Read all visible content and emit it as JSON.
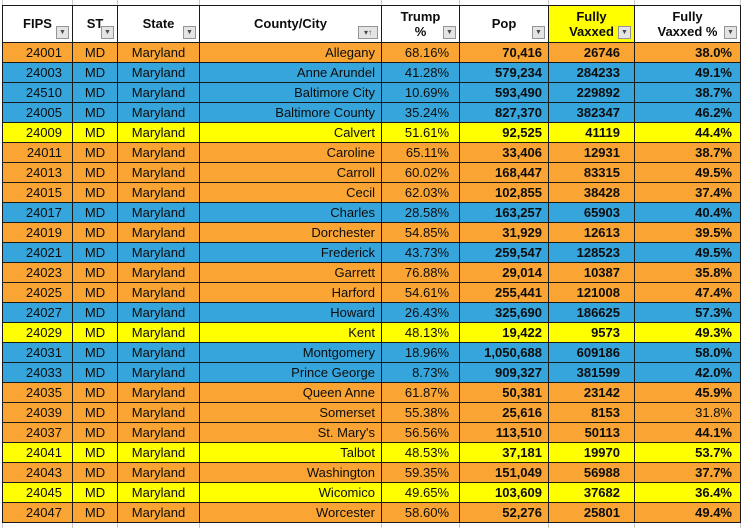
{
  "icons": {
    "dropdown": "▼",
    "sort_ascending": "▾↑"
  },
  "colors": {
    "row_orange": "#F9A433",
    "row_blue": "#36A5DC",
    "row_yellow": "#FFFF00",
    "header_highlight": "#FFFF00",
    "gridline": "#1a1a1a",
    "text": "#0d0d0d"
  },
  "table": {
    "columns": [
      {
        "key": "fips",
        "label": "FIPS",
        "filter": true
      },
      {
        "key": "st",
        "label": "ST",
        "filter": true
      },
      {
        "key": "state",
        "label": "State",
        "filter": true
      },
      {
        "key": "county",
        "label": "County/City",
        "filter": true,
        "sorted": "ascending"
      },
      {
        "key": "trump_pct",
        "label": "Trump\n%",
        "filter": true
      },
      {
        "key": "pop",
        "label": "Pop",
        "filter": true
      },
      {
        "key": "fully_vaxxed",
        "label": "Fully\nVaxxed",
        "filter": true,
        "highlighted": true
      },
      {
        "key": "fully_vaxxed_pct",
        "label": "Fully\nVaxxed %",
        "filter": true
      }
    ],
    "rows": [
      {
        "fips": "24001",
        "st": "MD",
        "state": "Maryland",
        "county": "Allegany",
        "trump_pct": "68.16%",
        "pop": "70,416",
        "fully_vaxxed": "26746",
        "fully_vaxxed_pct": "38.0%",
        "color": "orange"
      },
      {
        "fips": "24003",
        "st": "MD",
        "state": "Maryland",
        "county": "Anne Arundel",
        "trump_pct": "41.28%",
        "pop": "579,234",
        "fully_vaxxed": "284233",
        "fully_vaxxed_pct": "49.1%",
        "color": "blue"
      },
      {
        "fips": "24510",
        "st": "MD",
        "state": "Maryland",
        "county": "Baltimore City",
        "trump_pct": "10.69%",
        "pop": "593,490",
        "fully_vaxxed": "229892",
        "fully_vaxxed_pct": "38.7%",
        "color": "blue"
      },
      {
        "fips": "24005",
        "st": "MD",
        "state": "Maryland",
        "county": "Baltimore County",
        "trump_pct": "35.24%",
        "pop": "827,370",
        "fully_vaxxed": "382347",
        "fully_vaxxed_pct": "46.2%",
        "color": "blue"
      },
      {
        "fips": "24009",
        "st": "MD",
        "state": "Maryland",
        "county": "Calvert",
        "trump_pct": "51.61%",
        "pop": "92,525",
        "fully_vaxxed": "41119",
        "fully_vaxxed_pct": "44.4%",
        "color": "yellow"
      },
      {
        "fips": "24011",
        "st": "MD",
        "state": "Maryland",
        "county": "Caroline",
        "trump_pct": "65.11%",
        "pop": "33,406",
        "fully_vaxxed": "12931",
        "fully_vaxxed_pct": "38.7%",
        "color": "orange"
      },
      {
        "fips": "24013",
        "st": "MD",
        "state": "Maryland",
        "county": "Carroll",
        "trump_pct": "60.02%",
        "pop": "168,447",
        "fully_vaxxed": "83315",
        "fully_vaxxed_pct": "49.5%",
        "color": "orange"
      },
      {
        "fips": "24015",
        "st": "MD",
        "state": "Maryland",
        "county": "Cecil",
        "trump_pct": "62.03%",
        "pop": "102,855",
        "fully_vaxxed": "38428",
        "fully_vaxxed_pct": "37.4%",
        "color": "orange"
      },
      {
        "fips": "24017",
        "st": "MD",
        "state": "Maryland",
        "county": "Charles",
        "trump_pct": "28.58%",
        "pop": "163,257",
        "fully_vaxxed": "65903",
        "fully_vaxxed_pct": "40.4%",
        "color": "blue"
      },
      {
        "fips": "24019",
        "st": "MD",
        "state": "Maryland",
        "county": "Dorchester",
        "trump_pct": "54.85%",
        "pop": "31,929",
        "fully_vaxxed": "12613",
        "fully_vaxxed_pct": "39.5%",
        "color": "orange"
      },
      {
        "fips": "24021",
        "st": "MD",
        "state": "Maryland",
        "county": "Frederick",
        "trump_pct": "43.73%",
        "pop": "259,547",
        "fully_vaxxed": "128523",
        "fully_vaxxed_pct": "49.5%",
        "color": "blue"
      },
      {
        "fips": "24023",
        "st": "MD",
        "state": "Maryland",
        "county": "Garrett",
        "trump_pct": "76.88%",
        "pop": "29,014",
        "fully_vaxxed": "10387",
        "fully_vaxxed_pct": "35.8%",
        "color": "orange"
      },
      {
        "fips": "24025",
        "st": "MD",
        "state": "Maryland",
        "county": "Harford",
        "trump_pct": "54.61%",
        "pop": "255,441",
        "fully_vaxxed": "121008",
        "fully_vaxxed_pct": "47.4%",
        "color": "orange"
      },
      {
        "fips": "24027",
        "st": "MD",
        "state": "Maryland",
        "county": "Howard",
        "trump_pct": "26.43%",
        "pop": "325,690",
        "fully_vaxxed": "186625",
        "fully_vaxxed_pct": "57.3%",
        "color": "blue"
      },
      {
        "fips": "24029",
        "st": "MD",
        "state": "Maryland",
        "county": "Kent",
        "trump_pct": "48.13%",
        "pop": "19,422",
        "fully_vaxxed": "9573",
        "fully_vaxxed_pct": "49.3%",
        "color": "yellow"
      },
      {
        "fips": "24031",
        "st": "MD",
        "state": "Maryland",
        "county": "Montgomery",
        "trump_pct": "18.96%",
        "pop": "1,050,688",
        "fully_vaxxed": "609186",
        "fully_vaxxed_pct": "58.0%",
        "color": "blue"
      },
      {
        "fips": "24033",
        "st": "MD",
        "state": "Maryland",
        "county": "Prince George",
        "trump_pct": "8.73%",
        "pop": "909,327",
        "fully_vaxxed": "381599",
        "fully_vaxxed_pct": "42.0%",
        "color": "blue"
      },
      {
        "fips": "24035",
        "st": "MD",
        "state": "Maryland",
        "county": "Queen Anne",
        "trump_pct": "61.87%",
        "pop": "50,381",
        "fully_vaxxed": "23142",
        "fully_vaxxed_pct": "45.9%",
        "color": "orange"
      },
      {
        "fips": "24039",
        "st": "MD",
        "state": "Maryland",
        "county": "Somerset",
        "trump_pct": "55.38%",
        "pop": "25,616",
        "fully_vaxxed": "8153",
        "fully_vaxxed_pct": "31.8%",
        "color": "orange",
        "pct_bold": false
      },
      {
        "fips": "24037",
        "st": "MD",
        "state": "Maryland",
        "county": "St. Mary's",
        "trump_pct": "56.56%",
        "pop": "113,510",
        "fully_vaxxed": "50113",
        "fully_vaxxed_pct": "44.1%",
        "color": "orange"
      },
      {
        "fips": "24041",
        "st": "MD",
        "state": "Maryland",
        "county": "Talbot",
        "trump_pct": "48.53%",
        "pop": "37,181",
        "fully_vaxxed": "19970",
        "fully_vaxxed_pct": "53.7%",
        "color": "yellow"
      },
      {
        "fips": "24043",
        "st": "MD",
        "state": "Maryland",
        "county": "Washington",
        "trump_pct": "59.35%",
        "pop": "151,049",
        "fully_vaxxed": "56988",
        "fully_vaxxed_pct": "37.7%",
        "color": "orange"
      },
      {
        "fips": "24045",
        "st": "MD",
        "state": "Maryland",
        "county": "Wicomico",
        "trump_pct": "49.65%",
        "pop": "103,609",
        "fully_vaxxed": "37682",
        "fully_vaxxed_pct": "36.4%",
        "color": "yellow"
      },
      {
        "fips": "24047",
        "st": "MD",
        "state": "Maryland",
        "county": "Worcester",
        "trump_pct": "58.60%",
        "pop": "52,276",
        "fully_vaxxed": "25801",
        "fully_vaxxed_pct": "49.4%",
        "color": "orange"
      }
    ]
  }
}
